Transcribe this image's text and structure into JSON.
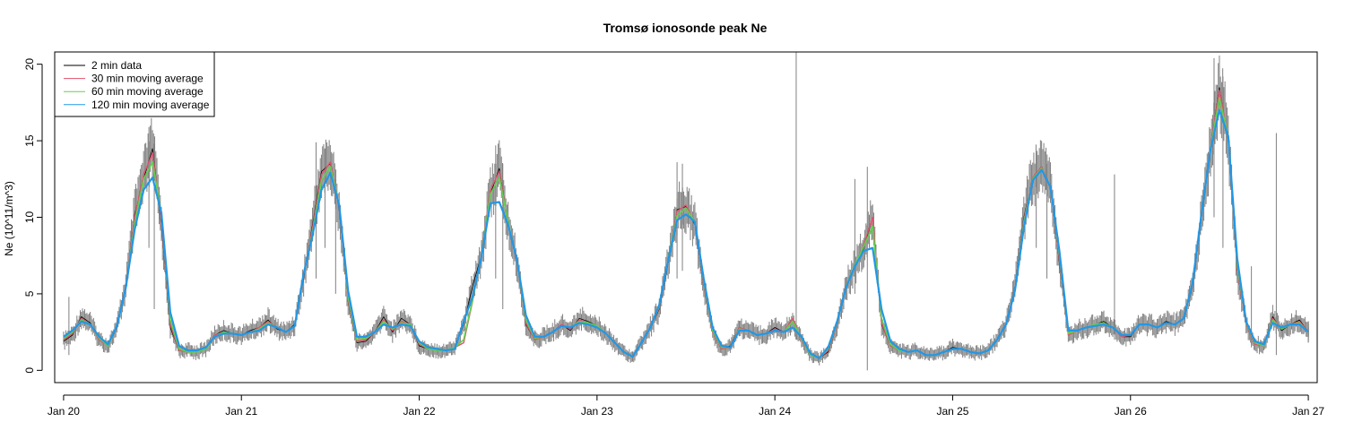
{
  "chart_data": {
    "type": "line",
    "title": "Tromsø ionosonde peak Ne",
    "xlabel": "",
    "ylabel": "Ne (10^11/m^3)",
    "xlim": [
      19.95,
      27.05
    ],
    "ylim": [
      -0.8,
      20.8
    ],
    "x_ticks": [
      {
        "value": 20,
        "label": "Jan 20"
      },
      {
        "value": 21,
        "label": "Jan 21"
      },
      {
        "value": 22,
        "label": "Jan 22"
      },
      {
        "value": 23,
        "label": "Jan 23"
      },
      {
        "value": 24,
        "label": "Jan 24"
      },
      {
        "value": 25,
        "label": "Jan 25"
      },
      {
        "value": 26,
        "label": "Jan 26"
      },
      {
        "value": 27,
        "label": "Jan 27"
      }
    ],
    "y_ticks": [
      {
        "value": 0,
        "label": "0"
      },
      {
        "value": 5,
        "label": "5"
      },
      {
        "value": 10,
        "label": "10"
      },
      {
        "value": 15,
        "label": "15"
      },
      {
        "value": 20,
        "label": "20"
      }
    ],
    "grid": false,
    "legend_position": "top-left",
    "series": [
      {
        "name": "2 min data",
        "color": "#000000"
      },
      {
        "name": "30 min moving average",
        "color": "#DF536B"
      },
      {
        "name": "60 min moving average",
        "color": "#61D04F"
      },
      {
        "name": "120 min moving average",
        "color": "#2297E6"
      }
    ],
    "raw_data_color": "#808080",
    "x": [
      20.0,
      20.05,
      20.1,
      20.15,
      20.2,
      20.25,
      20.3,
      20.35,
      20.4,
      20.45,
      20.5,
      20.55,
      20.6,
      20.65,
      20.7,
      20.75,
      20.8,
      20.85,
      20.9,
      20.95,
      21.0,
      21.05,
      21.1,
      21.15,
      21.2,
      21.25,
      21.3,
      21.35,
      21.4,
      21.45,
      21.5,
      21.55,
      21.6,
      21.65,
      21.7,
      21.75,
      21.8,
      21.85,
      21.9,
      21.95,
      22.0,
      22.05,
      22.1,
      22.15,
      22.2,
      22.25,
      22.3,
      22.35,
      22.4,
      22.45,
      22.5,
      22.55,
      22.6,
      22.65,
      22.7,
      22.75,
      22.8,
      22.85,
      22.9,
      22.95,
      23.0,
      23.05,
      23.1,
      23.15,
      23.2,
      23.25,
      23.3,
      23.35,
      23.4,
      23.45,
      23.5,
      23.55,
      23.6,
      23.65,
      23.7,
      23.75,
      23.8,
      23.85,
      23.9,
      23.95,
      24.0,
      24.05,
      24.1,
      24.15,
      24.2,
      24.25,
      24.3,
      24.35,
      24.4,
      24.45,
      24.5,
      24.55,
      24.6,
      24.65,
      24.7,
      24.75,
      24.8,
      24.85,
      24.9,
      24.95,
      25.0,
      25.05,
      25.1,
      25.15,
      25.2,
      25.25,
      25.3,
      25.35,
      25.4,
      25.45,
      25.5,
      25.55,
      25.6,
      25.65,
      25.7,
      25.75,
      25.8,
      25.85,
      25.9,
      25.95,
      26.0,
      26.05,
      26.1,
      26.15,
      26.2,
      26.25,
      26.3,
      26.35,
      26.4,
      26.45,
      26.5,
      26.55,
      26.6,
      26.65,
      26.7,
      26.75,
      26.8,
      26.85,
      26.9,
      26.95,
      27.0
    ],
    "y_2min": [
      1.9,
      2.3,
      3.5,
      3.1,
      2.0,
      1.6,
      2.8,
      5.5,
      10.2,
      12.5,
      14.5,
      9.5,
      2.8,
      1.3,
      1.3,
      1.2,
      1.4,
      2.3,
      2.6,
      2.4,
      2.3,
      2.6,
      2.8,
      3.3,
      2.7,
      2.5,
      3.0,
      6.0,
      9.5,
      13.0,
      13.5,
      10.5,
      4.5,
      1.8,
      1.9,
      2.5,
      3.5,
      2.5,
      3.4,
      3.0,
      1.6,
      1.4,
      1.3,
      1.3,
      1.5,
      3.0,
      5.5,
      7.5,
      11.5,
      13.2,
      9.5,
      7.0,
      3.0,
      2.0,
      2.2,
      2.5,
      3.0,
      2.6,
      3.4,
      3.2,
      2.9,
      2.4,
      1.8,
      1.2,
      0.9,
      1.8,
      2.8,
      4.0,
      7.0,
      10.5,
      10.7,
      9.5,
      5.5,
      2.5,
      1.4,
      1.6,
      2.8,
      2.6,
      2.3,
      2.4,
      2.8,
      2.5,
      3.2,
      2.0,
      1.0,
      0.8,
      1.2,
      3.0,
      5.5,
      6.8,
      8.0,
      10.0,
      3.0,
      1.6,
      1.3,
      1.2,
      1.3,
      1.0,
      1.0,
      1.2,
      1.5,
      1.4,
      1.2,
      1.1,
      1.3,
      2.0,
      3.0,
      5.5,
      10.0,
      12.5,
      13.2,
      12.0,
      7.0,
      2.3,
      2.6,
      2.8,
      3.0,
      3.2,
      2.8,
      2.2,
      2.2,
      3.0,
      3.0,
      2.8,
      3.2,
      3.0,
      3.4,
      5.5,
      10.0,
      14.5,
      18.5,
      15.0,
      6.5,
      3.0,
      1.7,
      1.6,
      3.5,
      2.6,
      3.0,
      3.3,
      2.5
    ],
    "y_30min": [
      2.0,
      2.4,
      3.4,
      3.0,
      2.0,
      1.6,
      2.9,
      5.6,
      10.0,
      12.8,
      14.2,
      9.8,
      3.0,
      1.3,
      1.2,
      1.2,
      1.4,
      2.3,
      2.5,
      2.4,
      2.3,
      2.5,
      2.8,
      3.2,
      2.8,
      2.5,
      2.9,
      6.2,
      9.3,
      12.8,
      13.6,
      10.6,
      4.6,
      1.9,
      2.0,
      2.5,
      3.3,
      2.6,
      3.2,
      3.0,
      1.7,
      1.4,
      1.3,
      1.3,
      1.5,
      1.8,
      4.5,
      7.6,
      11.8,
      13.0,
      9.6,
      7.0,
      3.1,
      2.0,
      2.2,
      2.5,
      3.0,
      2.7,
      3.3,
      3.1,
      2.9,
      2.4,
      1.8,
      1.2,
      0.9,
      1.8,
      2.8,
      4.1,
      7.2,
      10.4,
      10.8,
      9.6,
      5.6,
      2.5,
      1.4,
      1.5,
      2.8,
      2.6,
      2.3,
      2.4,
      2.7,
      2.5,
      3.4,
      2.0,
      1.0,
      0.8,
      1.3,
      3.0,
      5.6,
      6.8,
      8.2,
      10.0,
      3.1,
      1.6,
      1.3,
      1.2,
      1.3,
      1.0,
      1.0,
      1.2,
      1.4,
      1.4,
      1.2,
      1.1,
      1.3,
      2.0,
      3.0,
      5.4,
      9.8,
      12.6,
      13.3,
      12.0,
      7.2,
      2.3,
      2.6,
      2.8,
      3.0,
      3.1,
      2.8,
      2.2,
      2.3,
      3.0,
      3.0,
      2.8,
      3.1,
      3.0,
      3.4,
      5.6,
      10.2,
      14.6,
      18.3,
      15.2,
      6.6,
      3.0,
      1.7,
      1.6,
      3.4,
      2.7,
      3.0,
      3.2,
      2.5
    ],
    "y_60min": [
      2.1,
      2.5,
      3.3,
      3.0,
      2.1,
      1.6,
      2.9,
      5.5,
      9.6,
      12.5,
      13.6,
      10.2,
      3.3,
      1.4,
      1.2,
      1.2,
      1.4,
      2.2,
      2.5,
      2.4,
      2.3,
      2.5,
      2.7,
      3.1,
      2.8,
      2.5,
      2.9,
      6.3,
      9.0,
      12.4,
      13.3,
      10.8,
      4.8,
      2.0,
      2.1,
      2.5,
      3.2,
      2.7,
      3.1,
      3.0,
      1.8,
      1.4,
      1.3,
      1.3,
      1.5,
      2.0,
      4.6,
      7.5,
      11.5,
      12.6,
      9.7,
      7.1,
      3.3,
      2.1,
      2.2,
      2.5,
      2.9,
      2.8,
      3.2,
      3.1,
      2.9,
      2.4,
      1.8,
      1.2,
      0.9,
      1.8,
      2.8,
      4.2,
      7.3,
      10.1,
      10.6,
      9.7,
      5.8,
      2.6,
      1.5,
      1.5,
      2.7,
      2.6,
      2.3,
      2.4,
      2.6,
      2.5,
      3.2,
      2.1,
      1.0,
      0.8,
      1.4,
      3.1,
      5.5,
      6.9,
      8.1,
      9.4,
      3.4,
      1.7,
      1.3,
      1.2,
      1.3,
      1.0,
      1.0,
      1.2,
      1.4,
      1.4,
      1.2,
      1.1,
      1.3,
      2.0,
      3.0,
      5.3,
      9.6,
      12.5,
      13.2,
      12.0,
      7.5,
      2.4,
      2.6,
      2.8,
      3.0,
      3.1,
      2.8,
      2.3,
      2.3,
      3.0,
      3.0,
      2.8,
      3.1,
      3.0,
      3.4,
      5.7,
      10.3,
      14.5,
      17.8,
      15.3,
      6.9,
      3.1,
      1.8,
      1.6,
      3.3,
      2.7,
      3.0,
      3.1,
      2.5
    ],
    "y_120min": [
      2.2,
      2.6,
      3.2,
      3.0,
      2.2,
      1.7,
      2.9,
      5.4,
      9.2,
      11.8,
      12.6,
      10.3,
      3.8,
      1.6,
      1.3,
      1.3,
      1.5,
      2.2,
      2.4,
      2.4,
      2.3,
      2.5,
      2.6,
      3.0,
      2.8,
      2.5,
      2.9,
      6.3,
      8.8,
      11.8,
      12.9,
      10.8,
      5.2,
      2.2,
      2.2,
      2.5,
      3.0,
      2.8,
      3.0,
      2.9,
      1.9,
      1.5,
      1.4,
      1.3,
      1.4,
      3.2,
      4.8,
      7.4,
      10.9,
      11.0,
      9.5,
      7.2,
      3.6,
      2.2,
      2.2,
      2.5,
      2.9,
      2.8,
      3.1,
      3.0,
      2.8,
      2.4,
      1.8,
      1.2,
      0.9,
      1.8,
      2.8,
      4.3,
      7.2,
      9.8,
      10.2,
      9.7,
      6.0,
      2.8,
      1.6,
      1.5,
      2.6,
      2.6,
      2.3,
      2.4,
      2.6,
      2.5,
      2.8,
      2.2,
      1.1,
      0.8,
      1.5,
      3.2,
      5.4,
      6.8,
      7.8,
      8.0,
      4.0,
      1.9,
      1.4,
      1.2,
      1.3,
      1.0,
      1.0,
      1.2,
      1.4,
      1.4,
      1.2,
      1.1,
      1.3,
      2.0,
      3.0,
      5.2,
      9.3,
      12.4,
      13.1,
      12.0,
      7.8,
      2.6,
      2.6,
      2.8,
      2.9,
      3.0,
      2.8,
      2.3,
      2.3,
      3.0,
      3.0,
      2.8,
      3.1,
      3.0,
      3.4,
      5.8,
      10.3,
      14.4,
      17.0,
      15.3,
      7.3,
      3.2,
      1.9,
      1.7,
      3.1,
      2.8,
      3.0,
      3.0,
      2.5
    ],
    "raw_spikes": [
      {
        "x": 20.03,
        "low": 1.0,
        "high": 4.8
      },
      {
        "x": 20.48,
        "low": 8.0,
        "high": 15.9
      },
      {
        "x": 20.51,
        "low": 4.0,
        "high": 14.8
      },
      {
        "x": 21.42,
        "low": 6.0,
        "high": 14.9
      },
      {
        "x": 21.47,
        "low": 8.0,
        "high": 14.5
      },
      {
        "x": 21.53,
        "low": 5.0,
        "high": 12.5
      },
      {
        "x": 22.43,
        "low": 6.0,
        "high": 14.7
      },
      {
        "x": 22.47,
        "low": 4.0,
        "high": 13.5
      },
      {
        "x": 23.45,
        "low": 6.0,
        "high": 13.6
      },
      {
        "x": 23.48,
        "low": 6.5,
        "high": 13.5
      },
      {
        "x": 24.12,
        "low": 2.0,
        "high": 20.8
      },
      {
        "x": 24.45,
        "low": 5.0,
        "high": 12.5
      },
      {
        "x": 24.52,
        "low": 0.0,
        "high": 13.3
      },
      {
        "x": 25.47,
        "low": 8.0,
        "high": 14.2
      },
      {
        "x": 25.53,
        "low": 6.0,
        "high": 13.5
      },
      {
        "x": 25.91,
        "low": 2.0,
        "high": 12.8
      },
      {
        "x": 26.47,
        "low": 10.0,
        "high": 20.4
      },
      {
        "x": 26.52,
        "low": 8.0,
        "high": 19.2
      },
      {
        "x": 26.82,
        "low": 1.0,
        "high": 15.5
      },
      {
        "x": 26.68,
        "low": 1.5,
        "high": 6.8
      }
    ]
  }
}
